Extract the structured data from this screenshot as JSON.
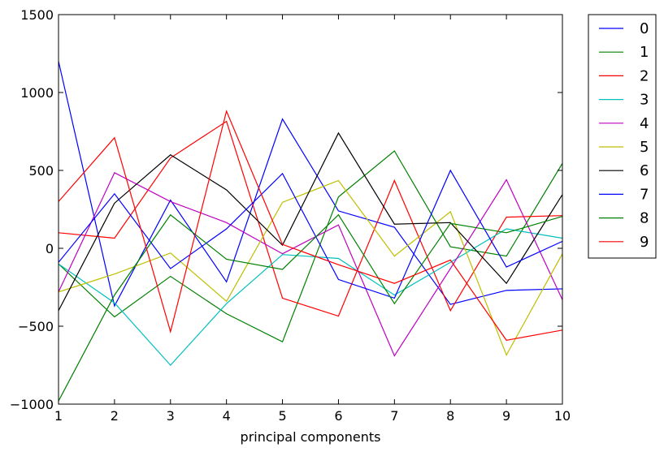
{
  "chart_data": {
    "type": "line",
    "title": "",
    "xlabel": "principal components",
    "ylabel": "",
    "x": [
      1,
      2,
      3,
      4,
      5,
      6,
      7,
      8,
      9,
      10
    ],
    "xlim": [
      1,
      10
    ],
    "ylim": [
      -1000,
      1500
    ],
    "xticks": [
      1,
      2,
      3,
      4,
      5,
      6,
      7,
      8,
      9,
      10
    ],
    "yticks": [
      -1000,
      -500,
      0,
      500,
      1000,
      1500
    ],
    "ytick_labels": [
      "−1000",
      "−500",
      "0",
      "500",
      "1000",
      "1500"
    ],
    "grid": false,
    "legend_position": "outside-right-top",
    "series": [
      {
        "name": "0",
        "color": "#0000ff",
        "values": [
          1200,
          -370,
          310,
          -215,
          830,
          240,
          135,
          -360,
          -270,
          -260
        ]
      },
      {
        "name": "1",
        "color": "#008000",
        "values": [
          -100,
          -440,
          -180,
          -420,
          -600,
          330,
          625,
          10,
          -50,
          545
        ]
      },
      {
        "name": "2",
        "color": "#ff0000",
        "values": [
          100,
          65,
          580,
          815,
          -320,
          -435,
          435,
          -400,
          200,
          210
        ]
      },
      {
        "name": "3",
        "color": "#00bfbf",
        "values": [
          -100,
          -350,
          -750,
          -355,
          -40,
          -65,
          -300,
          -90,
          125,
          65
        ]
      },
      {
        "name": "4",
        "color": "#bf00bf",
        "values": [
          -280,
          485,
          300,
          165,
          -35,
          150,
          -690,
          -130,
          440,
          -330
        ]
      },
      {
        "name": "5",
        "color": "#bfbf00",
        "values": [
          -280,
          -165,
          -30,
          -340,
          295,
          435,
          -50,
          235,
          -685,
          -35
        ]
      },
      {
        "name": "6",
        "color": "#000000",
        "values": [
          -400,
          290,
          600,
          375,
          20,
          740,
          155,
          165,
          -225,
          345
        ]
      },
      {
        "name": "7",
        "color": "#0000ff",
        "values": [
          -90,
          350,
          -130,
          125,
          480,
          -200,
          -320,
          500,
          -120,
          45
        ]
      },
      {
        "name": "8",
        "color": "#008000",
        "values": [
          -980,
          -300,
          215,
          -70,
          -135,
          215,
          -355,
          160,
          100,
          205
        ]
      },
      {
        "name": "9",
        "color": "#ff0000",
        "values": [
          300,
          710,
          -535,
          880,
          25,
          -105,
          -225,
          -75,
          -590,
          -525
        ]
      }
    ]
  }
}
